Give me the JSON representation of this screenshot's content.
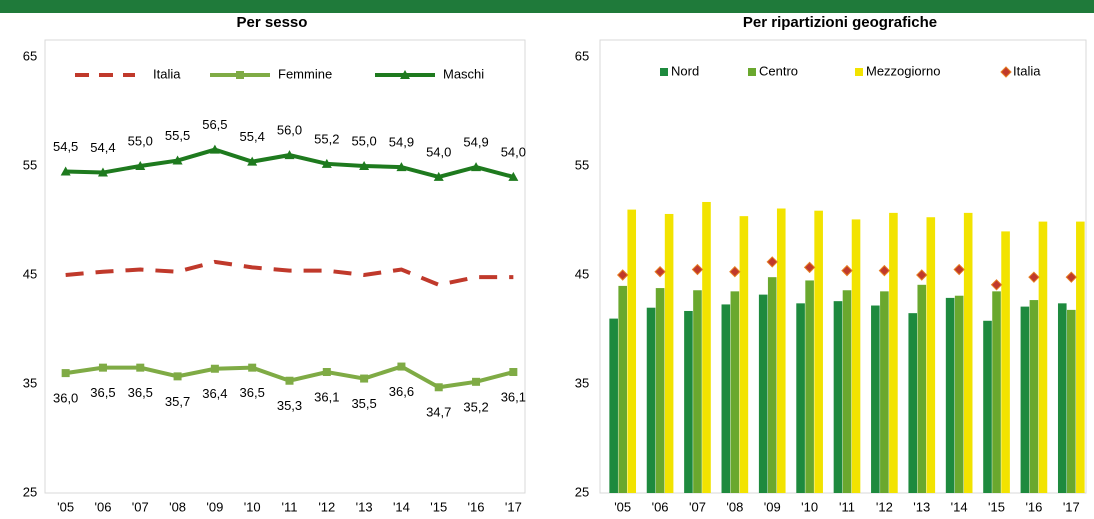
{
  "chart_data": [
    {
      "type": "line",
      "title": "Per sesso",
      "categories": [
        "'05",
        "'06",
        "'07",
        "'08",
        "'09",
        "'10",
        "'11",
        "'12",
        "'13",
        "'14",
        "'15",
        "'16",
        "'17"
      ],
      "ylim": [
        25,
        65
      ],
      "yticks": [
        25,
        35,
        45,
        55,
        65
      ],
      "grid": false,
      "series": [
        {
          "name": "Italia",
          "color": "#c0392b",
          "dash": true,
          "values": [
            45.0,
            45.3,
            45.5,
            45.3,
            46.2,
            45.7,
            45.4,
            45.4,
            45.0,
            45.5,
            44.1,
            44.8,
            44.8
          ]
        },
        {
          "name": "Femmine",
          "color": "#7fab45",
          "marker": "square",
          "label_position": "below",
          "values": [
            36.0,
            36.5,
            36.5,
            35.7,
            36.4,
            36.5,
            35.3,
            36.1,
            35.5,
            36.6,
            34.7,
            35.2,
            36.1
          ],
          "value_labels": [
            "36,0",
            "36,5",
            "36,5",
            "35,7",
            "36,4",
            "36,5",
            "35,3",
            "36,1",
            "35,5",
            "36,6",
            "34,7",
            "35,2",
            "36,1"
          ]
        },
        {
          "name": "Maschi",
          "color": "#1e7a1e",
          "marker": "triangle",
          "label_position": "above",
          "values": [
            54.5,
            54.4,
            55.0,
            55.5,
            56.5,
            55.4,
            56.0,
            55.2,
            55.0,
            54.9,
            54.0,
            54.9,
            54.0
          ],
          "value_labels": [
            "54,5",
            "54,4",
            "55,0",
            "55,5",
            "56,5",
            "55,4",
            "56,0",
            "55,2",
            "55,0",
            "54,9",
            "54,0",
            "54,9",
            "54,0"
          ]
        }
      ]
    },
    {
      "type": "bar",
      "title": "Per ripartizioni geografiche",
      "categories": [
        "'05",
        "'06",
        "'07",
        "'08",
        "'09",
        "'10",
        "'11",
        "'12",
        "'13",
        "'14",
        "'15",
        "'16",
        "'17"
      ],
      "ylim": [
        25,
        65
      ],
      "yticks": [
        25,
        35,
        45,
        55,
        65
      ],
      "grid": false,
      "series": [
        {
          "name": "Nord",
          "color": "#1e8a3e",
          "values": [
            41.0,
            42.0,
            41.7,
            42.3,
            43.2,
            42.4,
            42.6,
            42.2,
            41.5,
            42.9,
            40.8,
            42.1,
            42.4
          ]
        },
        {
          "name": "Centro",
          "color": "#6aa82e",
          "values": [
            44.0,
            43.8,
            43.6,
            43.5,
            44.8,
            44.5,
            43.6,
            43.5,
            44.1,
            43.1,
            43.5,
            42.7,
            41.8
          ]
        },
        {
          "name": "Mezzogiorno",
          "color": "#f2e300",
          "values": [
            51.0,
            50.6,
            51.7,
            50.4,
            51.1,
            50.9,
            50.1,
            50.7,
            50.3,
            50.7,
            49.0,
            49.9,
            49.9
          ]
        },
        {
          "name": "Italia",
          "color": "#c0392b",
          "type": "scatter",
          "values": [
            45.0,
            45.3,
            45.5,
            45.3,
            46.2,
            45.7,
            45.4,
            45.4,
            45.0,
            45.5,
            44.1,
            44.8,
            44.8
          ]
        }
      ]
    }
  ]
}
